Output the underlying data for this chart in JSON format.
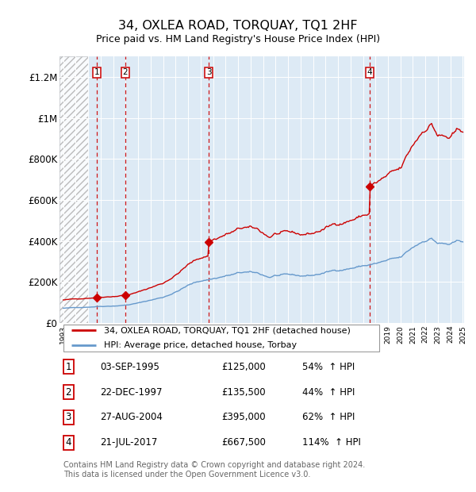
{
  "title": "34, OXLEA ROAD, TORQUAY, TQ1 2HF",
  "subtitle": "Price paid vs. HM Land Registry's House Price Index (HPI)",
  "ylim": [
    0,
    1300000
  ],
  "yticks": [
    0,
    200000,
    400000,
    600000,
    800000,
    1000000,
    1200000
  ],
  "ytick_labels": [
    "£0",
    "£200K",
    "£400K",
    "£600K",
    "£800K",
    "£1M",
    "£1.2M"
  ],
  "x_start_year": 1993,
  "x_end_year": 2025,
  "sale_points": [
    {
      "year": 1995,
      "month": 9,
      "day": 3,
      "price": 125000,
      "label": "1",
      "date_str": "03-SEP-1995",
      "pct": "54%",
      "dir": "↑"
    },
    {
      "year": 1997,
      "month": 12,
      "day": 22,
      "price": 135500,
      "label": "2",
      "date_str": "22-DEC-1997",
      "pct": "44%",
      "dir": "↑"
    },
    {
      "year": 2004,
      "month": 8,
      "day": 27,
      "price": 395000,
      "label": "3",
      "date_str": "27-AUG-2004",
      "pct": "62%",
      "dir": "↑"
    },
    {
      "year": 2017,
      "month": 7,
      "day": 21,
      "price": 667500,
      "label": "4",
      "date_str": "21-JUL-2017",
      "pct": "114%",
      "dir": "↑"
    }
  ],
  "property_line_color": "#cc0000",
  "hpi_line_color": "#6699cc",
  "background_color": "#ffffff",
  "plot_bg_color": "#ddeaf5",
  "footnote": "Contains HM Land Registry data © Crown copyright and database right 2024.\nThis data is licensed under the Open Government Licence v3.0.",
  "legend_entries": [
    "34, OXLEA ROAD, TORQUAY, TQ1 2HF (detached house)",
    "HPI: Average price, detached house, Torbay"
  ]
}
